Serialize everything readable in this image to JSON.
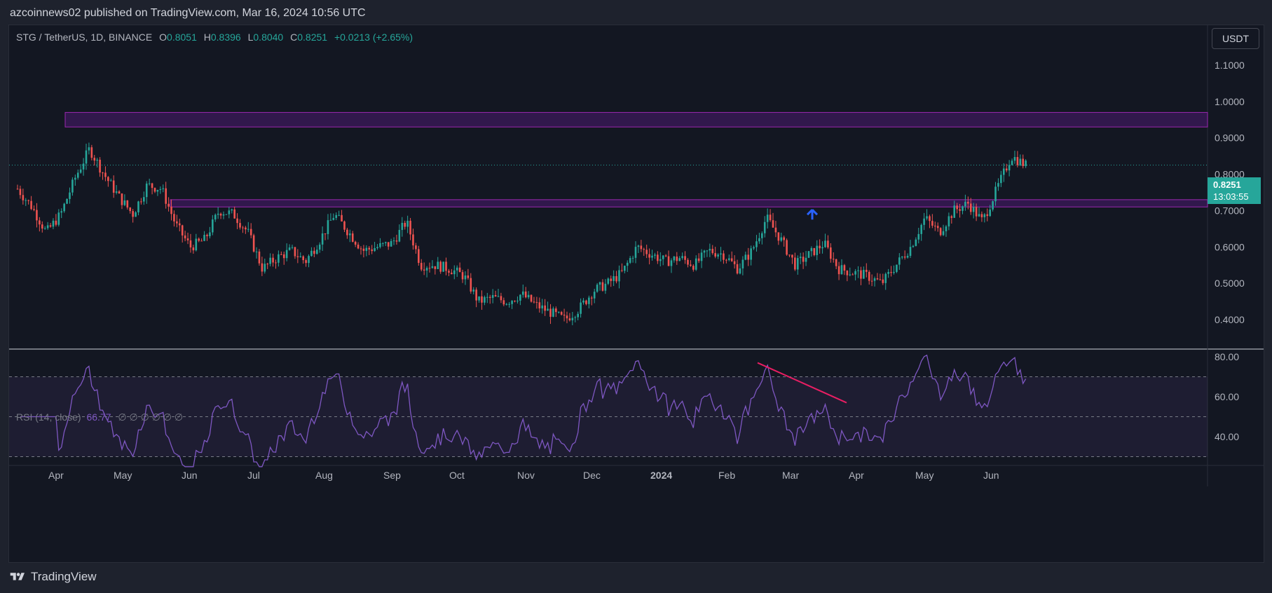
{
  "header": {
    "published": "azcoinnews02 published on TradingView.com, Mar 16, 2024 10:56 UTC"
  },
  "legend": {
    "symbol": "STG / TetherUS, 1D, BINANCE",
    "o_label": "O",
    "o_value": "0.8051",
    "h_label": "H",
    "h_value": "0.8396",
    "l_label": "L",
    "l_value": "0.8040",
    "c_label": "C",
    "c_value": "0.8251",
    "change": "+0.0213 (+2.65%)"
  },
  "currency": "USDT",
  "price_tag": {
    "price": "0.8251",
    "countdown": "13:03:55"
  },
  "rsi_legend": {
    "label": "RSI (14, close)",
    "value": "66.77",
    "extras": "∅ ∅ ∅ ∅ ∅ ∅"
  },
  "footer": {
    "brand": "TradingView"
  },
  "colors": {
    "up": "#26a69a",
    "down": "#ef5350",
    "rsi": "#7e57c2",
    "zone": "#6a1b9a",
    "trendline": "#e91e63",
    "arrow": "#2962ff"
  },
  "chart_data": {
    "type": "candlestick",
    "price_axis": {
      "ticks": [
        "1.1000",
        "1.0000",
        "0.9000",
        "0.8000",
        "0.7000",
        "0.6000",
        "0.5000",
        "0.4000"
      ],
      "range": [
        0.31,
        1.17
      ]
    },
    "time_axis": {
      "labels": [
        "Apr",
        "May",
        "Jun",
        "Jul",
        "Aug",
        "Sep",
        "Oct",
        "Nov",
        "Dec",
        "2024",
        "Feb",
        "Mar",
        "Apr",
        "May",
        "Jun"
      ]
    },
    "zones": [
      {
        "from": "Apr 2023",
        "to": "right edge",
        "price_low": 0.93,
        "price_high": 0.97
      },
      {
        "from": "May 2023",
        "to": "right edge",
        "price_low": 0.71,
        "price_high": 0.73
      }
    ],
    "close_path": [
      [
        "Mar 7 2023",
        0.76
      ],
      [
        "Mar 17",
        0.71
      ],
      [
        "Mar 25",
        0.64
      ],
      [
        "Apr 3",
        0.69
      ],
      [
        "Apr 12",
        0.79
      ],
      [
        "Apr 19",
        0.87
      ],
      [
        "Apr 25",
        0.8
      ],
      [
        "May 2",
        0.74
      ],
      [
        "May 9",
        0.69
      ],
      [
        "May 15",
        0.77
      ],
      [
        "May 22",
        0.76
      ],
      [
        "May 26",
        0.66
      ],
      [
        "Jun 2",
        0.6
      ],
      [
        "Jun 9",
        0.62
      ],
      [
        "Jun 16",
        0.7
      ],
      [
        "Jun 23",
        0.69
      ],
      [
        "Jun 28",
        0.64
      ],
      [
        "Jul 4",
        0.54
      ],
      [
        "Jul 12",
        0.57
      ],
      [
        "Jul 20",
        0.59
      ],
      [
        "Jul 28",
        0.56
      ],
      [
        "Aug 4",
        0.62
      ],
      [
        "Aug 12",
        0.69
      ],
      [
        "Aug 19",
        0.64
      ],
      [
        "Aug 26",
        0.59
      ],
      [
        "Sep 3",
        0.6
      ],
      [
        "Sep 10",
        0.61
      ],
      [
        "Sep 17",
        0.67
      ],
      [
        "Sep 22",
        0.55
      ],
      [
        "Sep 30",
        0.55
      ],
      [
        "Oct 7",
        0.54
      ],
      [
        "Oct 14",
        0.52
      ],
      [
        "Oct 19",
        0.45
      ],
      [
        "Oct 26",
        0.46
      ],
      [
        "Nov 2",
        0.45
      ],
      [
        "Nov 8",
        0.47
      ],
      [
        "Nov 14",
        0.44
      ],
      [
        "Nov 21",
        0.42
      ],
      [
        "Nov 28",
        0.4
      ],
      [
        "Dec 1",
        0.43
      ],
      [
        "Dec 6",
        0.48
      ],
      [
        "Dec 12",
        0.5
      ],
      [
        "Dec 17",
        0.53
      ],
      [
        "Dec 22",
        0.6
      ],
      [
        "Dec 30",
        0.58
      ],
      [
        "Jan 4 2024",
        0.56
      ],
      [
        "Jan 11",
        0.57
      ],
      [
        "Jan 17",
        0.55
      ],
      [
        "Jan 23",
        0.59
      ],
      [
        "Jan 29",
        0.58
      ],
      [
        "Feb 4",
        0.54
      ],
      [
        "Feb 8",
        0.59
      ],
      [
        "Feb 12",
        0.68
      ],
      [
        "Feb 17",
        0.62
      ],
      [
        "Feb 25",
        0.55
      ],
      [
        "Mar 3",
        0.58
      ],
      [
        "Mar 9",
        0.61
      ],
      [
        "Mar 15",
        0.54
      ],
      [
        "Mar 20",
        0.53
      ],
      [
        "Mar 27",
        0.52
      ],
      [
        "Apr 1",
        0.5
      ],
      [
        "Apr 5",
        0.55
      ],
      [
        "Apr 11",
        0.6
      ],
      [
        "Apr 16",
        0.68
      ],
      [
        "Apr 21",
        0.64
      ],
      [
        "Apr 25",
        0.7
      ],
      [
        "May 1",
        0.72
      ],
      [
        "May 7",
        0.67
      ],
      [
        "May 12",
        0.76
      ],
      [
        "May 17",
        0.85
      ],
      [
        "May 22",
        0.825
      ]
    ],
    "last": {
      "open": 0.8051,
      "high": 0.8396,
      "low": 0.804,
      "close": 0.8251
    },
    "rsi": {
      "axis_ticks": [
        "80.00",
        "60.00",
        "40.00"
      ],
      "range": [
        25,
        82
      ],
      "band": [
        30,
        70
      ],
      "midline": 50,
      "value": 66.77
    }
  }
}
